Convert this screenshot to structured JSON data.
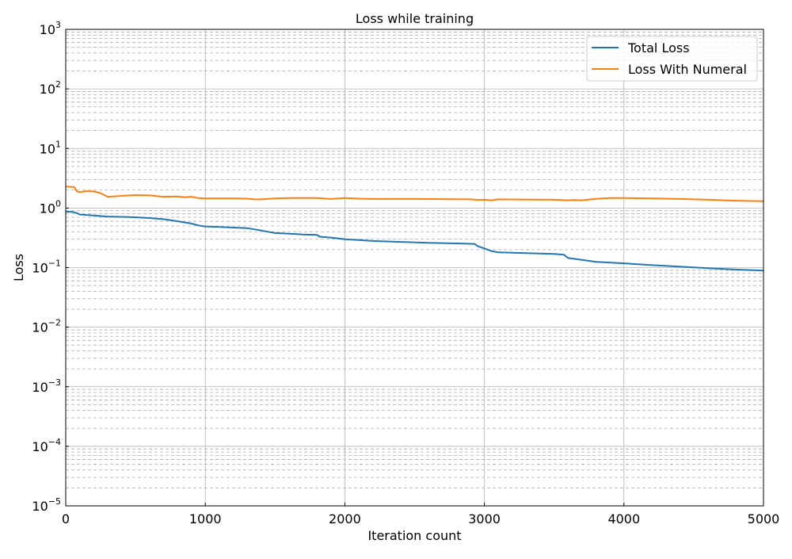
{
  "chart_data": {
    "type": "line",
    "title": "Loss while training",
    "xlabel": "Iteration count",
    "ylabel": "Loss",
    "xlim": [
      0,
      5000
    ],
    "ylim": [
      1e-05,
      1000
    ],
    "yscale": "log",
    "grid": true,
    "legend_position": "top-right",
    "x_ticks": [
      0,
      1000,
      2000,
      3000,
      4000,
      5000
    ],
    "x_tick_labels": [
      "0",
      "1000",
      "2000",
      "3000",
      "4000",
      "5000"
    ],
    "y_tick_values": [
      1e-05,
      0.0001,
      0.001,
      0.01,
      0.1,
      1,
      10,
      100,
      1000
    ],
    "y_tick_exponents": [
      "−5",
      "−4",
      "−3",
      "−2",
      "−1",
      "0",
      "1",
      "2",
      "3"
    ],
    "y_tick_base": "10",
    "series": [
      {
        "name": "Total Loss",
        "color": "#1f77b4",
        "x": [
          0,
          50,
          80,
          100,
          200,
          300,
          400,
          500,
          600,
          700,
          800,
          900,
          950,
          1000,
          1100,
          1200,
          1300,
          1400,
          1450,
          1500,
          1600,
          1700,
          1800,
          1820,
          1900,
          2000,
          2100,
          2200,
          2400,
          2600,
          2800,
          2930,
          2950,
          3000,
          3050,
          3100,
          3200,
          3300,
          3400,
          3500,
          3570,
          3600,
          3700,
          3800,
          4000,
          4200,
          4400,
          4600,
          4800,
          5000
        ],
        "y": [
          0.87,
          0.86,
          0.82,
          0.78,
          0.75,
          0.72,
          0.71,
          0.7,
          0.68,
          0.65,
          0.6,
          0.55,
          0.51,
          0.49,
          0.48,
          0.47,
          0.46,
          0.42,
          0.4,
          0.38,
          0.37,
          0.36,
          0.355,
          0.33,
          0.32,
          0.3,
          0.29,
          0.28,
          0.27,
          0.26,
          0.255,
          0.25,
          0.23,
          0.21,
          0.19,
          0.18,
          0.178,
          0.175,
          0.172,
          0.17,
          0.165,
          0.145,
          0.135,
          0.125,
          0.118,
          0.11,
          0.104,
          0.098,
          0.093,
          0.089
        ]
      },
      {
        "name": "Loss With Numeral",
        "color": "#ff7f0e",
        "x": [
          0,
          60,
          80,
          100,
          150,
          200,
          250,
          300,
          400,
          500,
          600,
          700,
          800,
          850,
          900,
          950,
          1000,
          1100,
          1200,
          1300,
          1350,
          1400,
          1500,
          1600,
          1800,
          1900,
          2000,
          2100,
          2200,
          2500,
          2900,
          2950,
          3000,
          3050,
          3100,
          3500,
          3600,
          3650,
          3700,
          3800,
          3900,
          4000,
          4200,
          4400,
          4600,
          4800,
          5000
        ],
        "y": [
          2.3,
          2.25,
          1.9,
          1.85,
          1.92,
          1.9,
          1.78,
          1.55,
          1.6,
          1.65,
          1.63,
          1.55,
          1.57,
          1.52,
          1.55,
          1.47,
          1.45,
          1.45,
          1.45,
          1.44,
          1.4,
          1.4,
          1.45,
          1.47,
          1.47,
          1.42,
          1.47,
          1.44,
          1.42,
          1.42,
          1.4,
          1.37,
          1.38,
          1.35,
          1.4,
          1.38,
          1.35,
          1.36,
          1.35,
          1.43,
          1.47,
          1.47,
          1.45,
          1.42,
          1.38,
          1.33,
          1.3
        ]
      }
    ]
  }
}
